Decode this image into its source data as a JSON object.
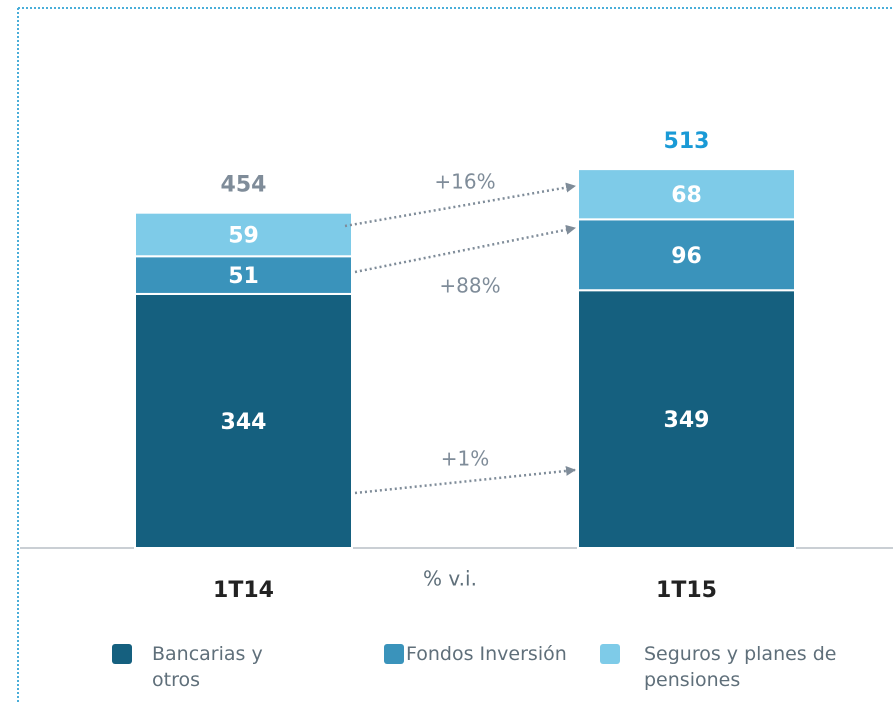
{
  "chart_data": {
    "type": "stacked_bar",
    "categories": [
      "1T14",
      "1T15"
    ],
    "series": [
      {
        "name": "Bancarias y otros",
        "color": "#15607f",
        "values": [
          344,
          349
        ]
      },
      {
        "name": "Fondos Inversión",
        "color": "#3a93bb",
        "values": [
          51,
          96
        ]
      },
      {
        "name": "Seguros y planes de pensiones",
        "color": "#7ecbe8",
        "values": [
          59,
          68
        ]
      }
    ],
    "totals": [
      454,
      513
    ],
    "total_colors": [
      "#7f8c99",
      "#1a9ad6"
    ],
    "annotations": [
      "+1%",
      "+88%",
      "+16%"
    ],
    "axis_note": "% v.i.",
    "ylim": [
      0,
      700
    ]
  }
}
